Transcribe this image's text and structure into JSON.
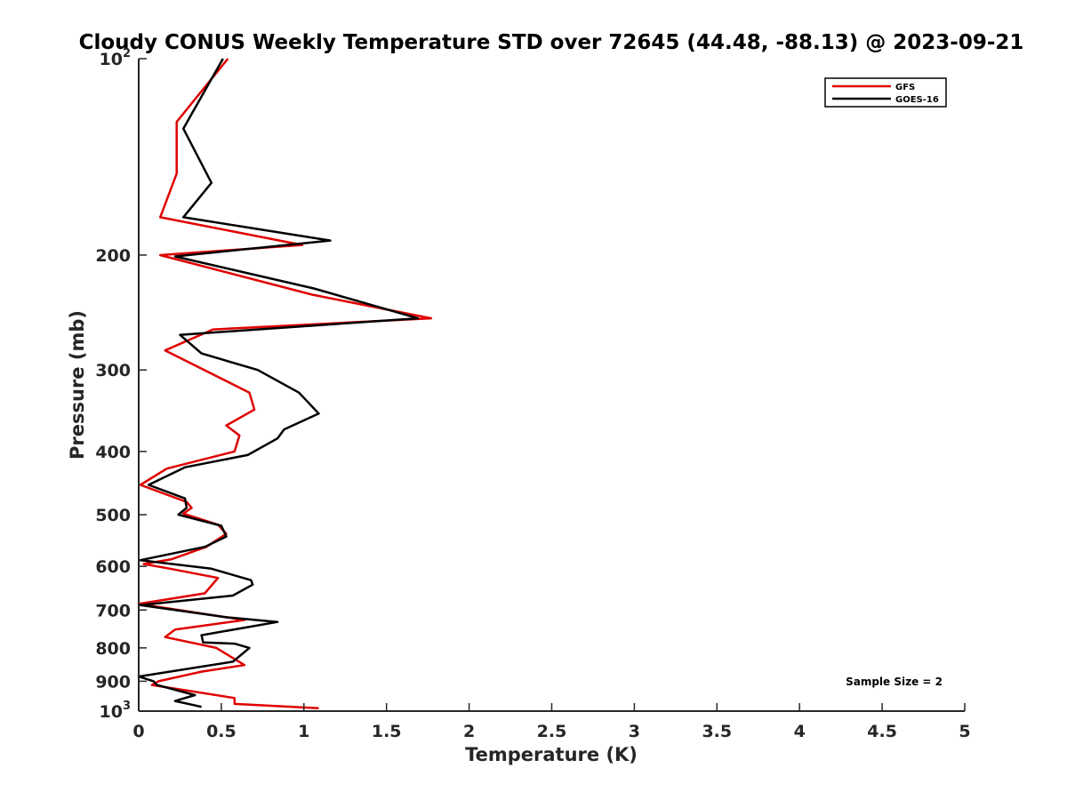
{
  "chart_data": {
    "type": "line",
    "title": "Cloudy CONUS Weekly Temperature STD over 72645 (44.48, -88.13) @ 2023-09-21",
    "xlabel": "Temperature (K)",
    "ylabel": "Pressure (mb)",
    "xlim": [
      0,
      5
    ],
    "ylim": [
      1000,
      100
    ],
    "y_scale": "log",
    "y_reversed": true,
    "xticks": [
      "0",
      "0.5",
      "1",
      "1.5",
      "2",
      "2.5",
      "3",
      "3.5",
      "4",
      "4.5",
      "5"
    ],
    "yticks": [
      {
        "value": 100,
        "base": "10",
        "exp": "2"
      },
      {
        "value": 200,
        "label": "200"
      },
      {
        "value": 300,
        "label": "300"
      },
      {
        "value": 400,
        "label": "400"
      },
      {
        "value": 500,
        "label": "500"
      },
      {
        "value": 600,
        "label": "600"
      },
      {
        "value": 700,
        "label": "700"
      },
      {
        "value": 800,
        "label": "800"
      },
      {
        "value": 900,
        "label": "900"
      },
      {
        "value": 1000,
        "base": "10",
        "exp": "3"
      }
    ],
    "grid": false,
    "legend_position": "top-right",
    "annotation": "Sample Size = 2",
    "series": [
      {
        "name": "GFS",
        "color": "#e00000",
        "points": [
          [
            0.54,
            100
          ],
          [
            0.23,
            125
          ],
          [
            0.23,
            150
          ],
          [
            0.13,
            175
          ],
          [
            0.99,
            193
          ],
          [
            0.13,
            200
          ],
          [
            1.05,
            230
          ],
          [
            1.77,
            250
          ],
          [
            0.45,
            260
          ],
          [
            0.16,
            280
          ],
          [
            0.67,
            325
          ],
          [
            0.7,
            345
          ],
          [
            0.53,
            365
          ],
          [
            0.61,
            378
          ],
          [
            0.58,
            400
          ],
          [
            0.17,
            425
          ],
          [
            0.01,
            450
          ],
          [
            0.29,
            478
          ],
          [
            0.32,
            488
          ],
          [
            0.27,
            498
          ],
          [
            0.48,
            518
          ],
          [
            0.53,
            535
          ],
          [
            0.41,
            560
          ],
          [
            0.2,
            585
          ],
          [
            0.03,
            595
          ],
          [
            0.19,
            605
          ],
          [
            0.48,
            625
          ],
          [
            0.4,
            660
          ],
          [
            0.0,
            685
          ],
          [
            0.64,
            725
          ],
          [
            0.22,
            750
          ],
          [
            0.16,
            770
          ],
          [
            0.47,
            800
          ],
          [
            0.64,
            850
          ],
          [
            0.38,
            870
          ],
          [
            0.12,
            900
          ],
          [
            0.08,
            912
          ],
          [
            0.58,
            955
          ],
          [
            0.58,
            975
          ],
          [
            1.09,
            990
          ]
        ]
      },
      {
        "name": "GOES-16",
        "color": "#000000",
        "points": [
          [
            0.51,
            100
          ],
          [
            0.27,
            128
          ],
          [
            0.44,
            155
          ],
          [
            0.27,
            175
          ],
          [
            1.16,
            190
          ],
          [
            0.22,
            201
          ],
          [
            1.06,
            225
          ],
          [
            1.69,
            250
          ],
          [
            0.25,
            265
          ],
          [
            0.38,
            283
          ],
          [
            0.72,
            300
          ],
          [
            0.97,
            325
          ],
          [
            1.09,
            350
          ],
          [
            0.88,
            370
          ],
          [
            0.84,
            382
          ],
          [
            0.66,
            405
          ],
          [
            0.28,
            423
          ],
          [
            0.06,
            450
          ],
          [
            0.28,
            472
          ],
          [
            0.29,
            488
          ],
          [
            0.24,
            500
          ],
          [
            0.5,
            520
          ],
          [
            0.53,
            540
          ],
          [
            0.4,
            560
          ],
          [
            0.01,
            587
          ],
          [
            0.44,
            605
          ],
          [
            0.68,
            630
          ],
          [
            0.69,
            640
          ],
          [
            0.57,
            665
          ],
          [
            0.01,
            688
          ],
          [
            0.53,
            718
          ],
          [
            0.84,
            730
          ],
          [
            0.38,
            765
          ],
          [
            0.39,
            785
          ],
          [
            0.58,
            788
          ],
          [
            0.67,
            800
          ],
          [
            0.57,
            840
          ],
          [
            0.0,
            885
          ],
          [
            0.09,
            900
          ],
          [
            0.11,
            912
          ],
          [
            0.34,
            945
          ],
          [
            0.22,
            965
          ],
          [
            0.38,
            985
          ]
        ]
      }
    ]
  }
}
